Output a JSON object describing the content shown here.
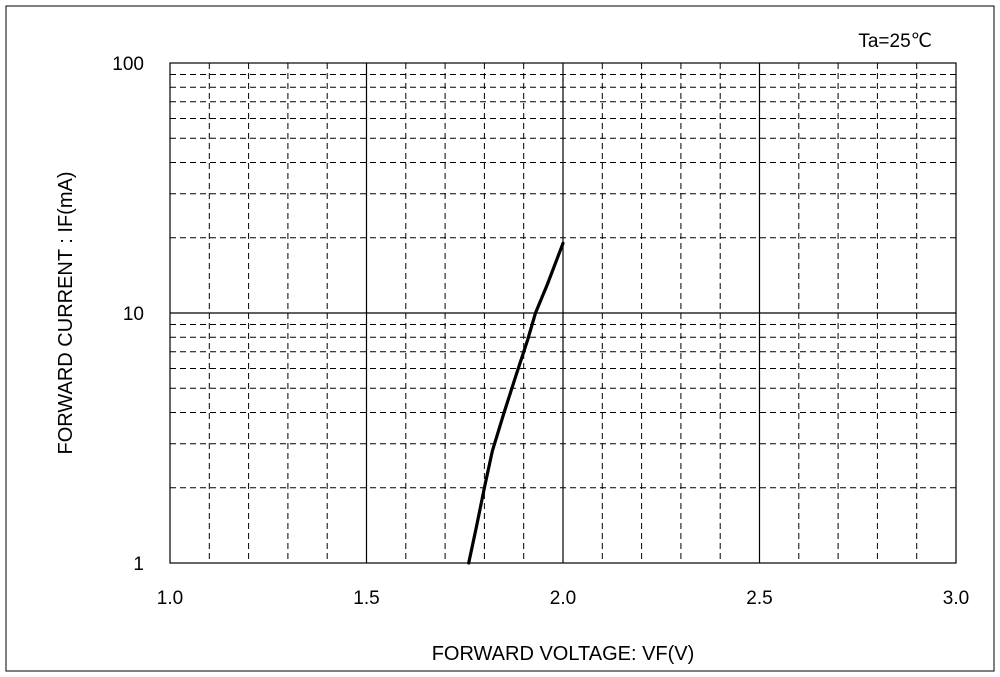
{
  "chart_data": {
    "type": "line",
    "title": "",
    "annotation": "Ta=25℃",
    "xlabel": "FORWARD VOLTAGE: VF(V)",
    "ylabel": "FORWARD CURRENT : IF(mA)",
    "xlim": [
      1.0,
      3.0
    ],
    "ylim": [
      1,
      100
    ],
    "yscale": "log",
    "grid": true,
    "x_ticks": [
      "1.0",
      "1.5",
      "2.0",
      "2.5",
      "3.0"
    ],
    "y_ticks": [
      "1",
      "10",
      "100"
    ],
    "series": [
      {
        "x": [
          1.76,
          1.78,
          1.8,
          1.82,
          1.85,
          1.88,
          1.91,
          1.93,
          1.96,
          2.0
        ],
        "y": [
          1.0,
          1.4,
          2.0,
          2.8,
          4.0,
          5.6,
          7.8,
          10.0,
          13.0,
          19.0
        ]
      }
    ]
  }
}
